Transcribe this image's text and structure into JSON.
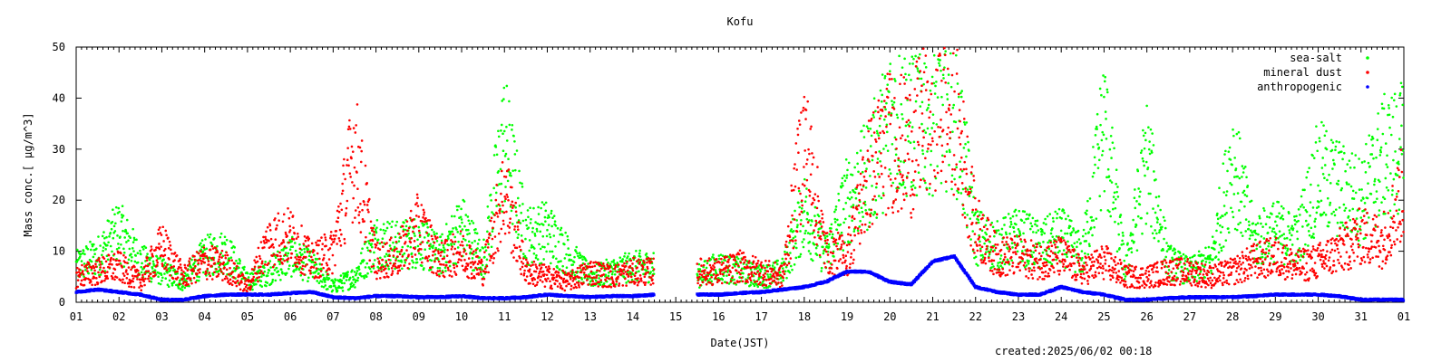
{
  "chart_data": {
    "type": "scatter",
    "title": "Kofu",
    "xlabel": "Date(JST)",
    "ylabel": "Mass conc.[ μg/m^3]",
    "ylim": [
      0,
      50
    ],
    "xlim": [
      1,
      32
    ],
    "x_ticks": [
      "01",
      "02",
      "03",
      "04",
      "05",
      "06",
      "07",
      "08",
      "09",
      "10",
      "11",
      "12",
      "13",
      "14",
      "15",
      "16",
      "17",
      "18",
      "19",
      "20",
      "21",
      "22",
      "23",
      "24",
      "25",
      "26",
      "27",
      "28",
      "29",
      "30",
      "31",
      "01"
    ],
    "y_ticks": [
      0,
      10,
      20,
      30,
      40,
      50
    ],
    "legend_position": "top-right",
    "footer": "created:2025/06/02 00:18",
    "series": [
      {
        "name": "sea-salt",
        "color": "#00ff00",
        "x": [
          1.0,
          1.5,
          2.0,
          2.5,
          3.0,
          3.5,
          4.0,
          4.5,
          5.0,
          5.5,
          6.0,
          6.5,
          7.0,
          7.5,
          8.0,
          8.5,
          9.0,
          9.5,
          10.0,
          10.5,
          11.0,
          11.5,
          12.0,
          12.5,
          13.0,
          13.5,
          14.0,
          14.5,
          15.0,
          15.5,
          16.0,
          16.5,
          17.0,
          17.5,
          18.0,
          18.5,
          19.0,
          19.5,
          20.0,
          20.5,
          21.0,
          21.5,
          22.0,
          22.5,
          23.0,
          23.5,
          24.0,
          24.5,
          25.0,
          25.5,
          26.0,
          26.5,
          27.0,
          27.5,
          28.0,
          28.5,
          29.0,
          29.5,
          30.0,
          30.5,
          31.0,
          31.5,
          32.0
        ],
        "values": [
          7,
          9,
          14,
          8,
          6,
          4,
          9,
          10,
          4,
          6,
          9,
          7,
          3,
          5,
          12,
          11,
          12,
          9,
          15,
          8,
          32,
          13,
          14,
          9,
          5,
          6,
          7,
          7,
          null,
          5,
          7,
          6,
          5,
          6,
          18,
          9,
          20,
          25,
          35,
          36,
          38,
          40,
          13,
          11,
          13,
          11,
          13,
          9,
          35,
          6,
          28,
          8,
          6,
          8,
          28,
          12,
          14,
          12,
          25,
          22,
          20,
          28,
          30
        ]
      },
      {
        "name": "mineral dust",
        "color": "#ff0000",
        "x": [
          1.0,
          1.5,
          2.0,
          2.5,
          3.0,
          3.5,
          4.0,
          4.5,
          5.0,
          5.5,
          6.0,
          6.5,
          7.0,
          7.5,
          8.0,
          8.5,
          9.0,
          9.5,
          10.0,
          10.5,
          11.0,
          11.5,
          12.0,
          12.5,
          13.0,
          13.5,
          14.0,
          14.5,
          15.0,
          15.5,
          16.0,
          16.5,
          17.0,
          17.5,
          18.0,
          18.5,
          19.0,
          19.5,
          20.0,
          20.5,
          21.0,
          21.5,
          22.0,
          22.5,
          23.0,
          23.5,
          24.0,
          24.5,
          25.0,
          25.5,
          26.0,
          26.5,
          27.0,
          27.5,
          28.0,
          28.5,
          29.0,
          29.5,
          30.0,
          30.5,
          31.0,
          31.5,
          32.0
        ],
        "values": [
          5,
          6,
          7,
          4,
          11,
          5,
          8,
          7,
          3,
          12,
          13,
          8,
          10,
          30,
          8,
          9,
          15,
          8,
          10,
          6,
          22,
          6,
          5,
          4,
          6,
          5,
          6,
          6,
          null,
          6,
          6,
          7,
          6,
          5,
          32,
          10,
          9,
          25,
          32,
          30,
          40,
          38,
          15,
          9,
          9,
          8,
          9,
          6,
          8,
          5,
          5,
          6,
          6,
          5,
          6,
          8,
          9,
          7,
          8,
          10,
          13,
          12,
          22
        ]
      },
      {
        "name": "anthropogenic",
        "color": "#0000ff",
        "x": [
          1.0,
          1.5,
          2.0,
          2.5,
          3.0,
          3.5,
          4.0,
          4.5,
          5.0,
          5.5,
          6.0,
          6.5,
          7.0,
          7.5,
          8.0,
          8.5,
          9.0,
          9.5,
          10.0,
          10.5,
          11.0,
          11.5,
          12.0,
          12.5,
          13.0,
          13.5,
          14.0,
          14.5,
          15.0,
          15.5,
          16.0,
          16.5,
          17.0,
          17.5,
          18.0,
          18.5,
          19.0,
          19.5,
          20.0,
          20.5,
          21.0,
          21.5,
          22.0,
          22.5,
          23.0,
          23.5,
          24.0,
          24.5,
          25.0,
          25.5,
          26.0,
          26.5,
          27.0,
          27.5,
          28.0,
          28.5,
          29.0,
          29.5,
          30.0,
          30.5,
          31.0,
          31.5,
          32.0
        ],
        "values": [
          2,
          2.5,
          2,
          1.5,
          0.5,
          0.5,
          1.2,
          1.5,
          1.5,
          1.5,
          1.8,
          2,
          1,
          0.8,
          1.2,
          1.2,
          1,
          1,
          1.2,
          0.8,
          0.8,
          1,
          1.5,
          1.2,
          1,
          1.2,
          1.2,
          1.5,
          null,
          1.5,
          1.5,
          1.8,
          2,
          2.5,
          3,
          4,
          6,
          6,
          4,
          3.5,
          8,
          9,
          3,
          2,
          1.5,
          1.5,
          3,
          2,
          1.5,
          0.5,
          0.5,
          0.8,
          1,
          1,
          1,
          1.2,
          1.5,
          1.5,
          1.5,
          1.2,
          0.5,
          0.5,
          0.5
        ]
      }
    ]
  }
}
